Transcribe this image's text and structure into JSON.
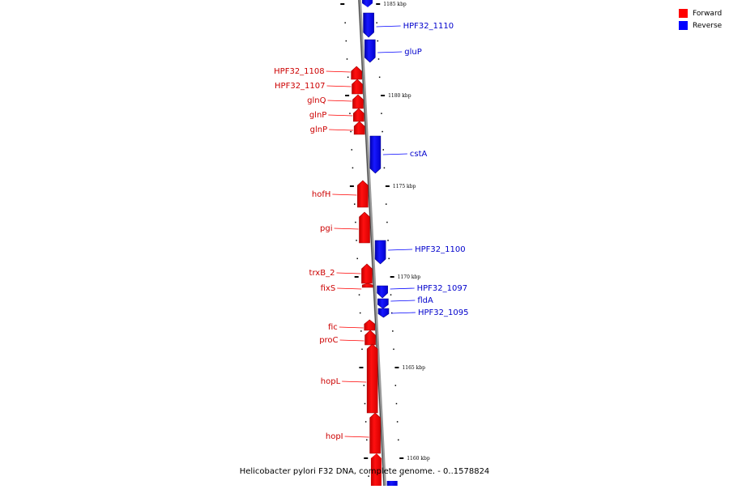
{
  "caption": "Helicobacter pylori F32 DNA, complete genome. - 0..1578824",
  "legend": [
    {
      "label": "Forward",
      "color": "#ff0000"
    },
    {
      "label": "Reverse",
      "color": "#0000ff"
    }
  ],
  "colors": {
    "forward": "#ff0000",
    "reverse": "#0000ff",
    "backbone": "#8a8a8a"
  },
  "scale_labels": [
    "1185 kbp",
    "1180 kbp",
    "1175 kbp",
    "1170 kbp",
    "1165 kbp",
    "1160 kbp"
  ],
  "genes": [
    {
      "name": "HPF32_1110",
      "strand": "reverse"
    },
    {
      "name": "gluP",
      "strand": "reverse"
    },
    {
      "name": "HPF32_1108",
      "strand": "forward"
    },
    {
      "name": "HPF32_1107",
      "strand": "forward"
    },
    {
      "name": "glnQ",
      "strand": "forward"
    },
    {
      "name": "glnP",
      "strand": "forward"
    },
    {
      "name": "glnP",
      "strand": "forward"
    },
    {
      "name": "cstA",
      "strand": "reverse"
    },
    {
      "name": "hofH",
      "strand": "forward"
    },
    {
      "name": "pgi",
      "strand": "forward"
    },
    {
      "name": "HPF32_1100",
      "strand": "reverse"
    },
    {
      "name": "trxB_2",
      "strand": "forward"
    },
    {
      "name": "fixS",
      "strand": "forward"
    },
    {
      "name": "HPF32_1097",
      "strand": "reverse"
    },
    {
      "name": "fldA",
      "strand": "reverse"
    },
    {
      "name": "HPF32_1095",
      "strand": "reverse"
    },
    {
      "name": "fic",
      "strand": "forward"
    },
    {
      "name": "proC",
      "strand": "forward"
    },
    {
      "name": "hopL",
      "strand": "forward"
    },
    {
      "name": "hopI",
      "strand": "forward"
    }
  ]
}
